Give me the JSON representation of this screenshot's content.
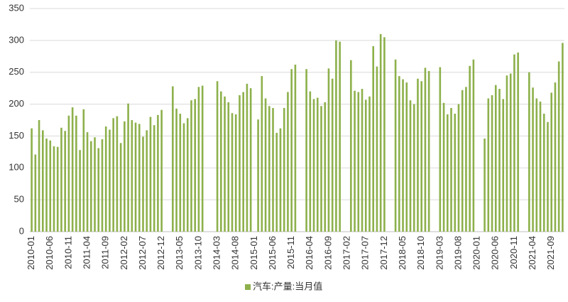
{
  "chart_data": {
    "type": "bar",
    "categories": [
      "2010-01",
      null,
      null,
      null,
      null,
      "2010-06",
      null,
      null,
      null,
      null,
      "2010-11",
      null,
      null,
      null,
      null,
      "2011-04",
      null,
      null,
      null,
      null,
      "2011-09",
      null,
      null,
      null,
      null,
      "2012-02",
      null,
      null,
      null,
      null,
      "2012-07",
      null,
      null,
      null,
      null,
      "2012-12",
      null,
      null,
      null,
      null,
      "2013-05",
      null,
      null,
      null,
      null,
      "2013-10",
      null,
      null,
      null,
      null,
      "2014-03",
      null,
      null,
      null,
      null,
      "2014-08",
      null,
      null,
      null,
      null,
      "2015-01",
      null,
      null,
      null,
      null,
      "2015-06",
      null,
      null,
      null,
      null,
      "2015-11",
      null,
      null,
      null,
      null,
      "2016-04",
      null,
      null,
      null,
      null,
      "2016-09",
      null,
      null,
      null,
      null,
      "2017-02",
      null,
      null,
      null,
      null,
      "2017-07",
      null,
      null,
      null,
      null,
      "2017-12",
      null,
      null,
      null,
      null,
      "2018-05",
      null,
      null,
      null,
      null,
      "2018-10",
      null,
      null,
      null,
      null,
      "2019-03",
      null,
      null,
      null,
      null,
      "2019-08",
      null,
      null,
      null,
      null,
      "2020-01",
      null,
      null,
      null,
      null,
      "2020-06",
      null,
      null,
      null,
      null,
      "2020-11",
      null,
      null,
      null,
      null,
      "2021-04",
      null,
      null,
      null,
      null,
      "2021-09",
      null,
      null,
      null
    ],
    "series": [
      {
        "name": "汽车:产量:当月值",
        "color": "#8db04b",
        "values": [
          162,
          121,
          175,
          159,
          146,
          143,
          134,
          133,
          163,
          158,
          182,
          195,
          182,
          128,
          192,
          156,
          142,
          148,
          131,
          145,
          165,
          160,
          178,
          181,
          139,
          173,
          201,
          175,
          171,
          169,
          149,
          159,
          180,
          167,
          183,
          191,
          null,
          null,
          228,
          193,
          185,
          170,
          178,
          206,
          208,
          227,
          229,
          null,
          null,
          null,
          236,
          220,
          212,
          203,
          186,
          184,
          214,
          219,
          232,
          225,
          null,
          176,
          244,
          209,
          197,
          194,
          155,
          162,
          194,
          219,
          255,
          262,
          null,
          null,
          255,
          220,
          208,
          210,
          197,
          203,
          256,
          240,
          300,
          298,
          null,
          null,
          269,
          221,
          219,
          224,
          207,
          212,
          291,
          259,
          310,
          305,
          null,
          null,
          270,
          244,
          239,
          234,
          206,
          200,
          240,
          236,
          257,
          252,
          null,
          null,
          258,
          202,
          184,
          194,
          185,
          200,
          222,
          227,
          260,
          270,
          null,
          null,
          146,
          209,
          214,
          230,
          224,
          208,
          245,
          248,
          278,
          281,
          null,
          null,
          250,
          226,
          209,
          204,
          185,
          172,
          218,
          234,
          267,
          296
        ]
      }
    ],
    "ylim": [
      0,
      350
    ],
    "yticks": [
      0,
      50,
      100,
      150,
      200,
      250,
      300,
      350
    ],
    "grid": true,
    "legend": "bottom"
  }
}
